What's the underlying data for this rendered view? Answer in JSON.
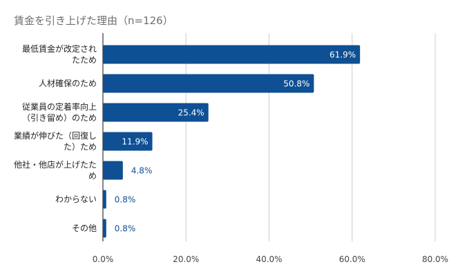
{
  "chart_data": {
    "type": "bar",
    "orientation": "horizontal",
    "title": "賃金を引き上げた理由（n=126）",
    "categories": [
      [
        "最低賃金が改定され",
        "たため"
      ],
      [
        "人材確保のため"
      ],
      [
        "従業員の定着率向上",
        "（引き留め）のため"
      ],
      [
        "業績が伸びた（回復し",
        "た）ため"
      ],
      [
        "他社・他店が上げたた",
        "め"
      ],
      [
        "わからない"
      ],
      [
        "その他"
      ]
    ],
    "values": [
      61.9,
      50.8,
      25.4,
      11.9,
      4.8,
      0.8,
      0.8
    ],
    "value_labels": [
      "61.9%",
      "50.8%",
      "25.4%",
      "11.9%",
      "4.8%",
      "0.8%",
      "0.8%"
    ],
    "xlim": [
      0,
      80
    ],
    "x_ticks": [
      "0.0%",
      "20.0%",
      "40.0%",
      "60.0%",
      "80.0%"
    ],
    "x_tick_values": [
      0,
      20,
      40,
      60,
      80
    ],
    "grid": "vertical",
    "legend": "none",
    "bar_color": "#0f4f93",
    "label_inside_color": "#ffffff",
    "label_outside_color": "#0f4f93"
  }
}
